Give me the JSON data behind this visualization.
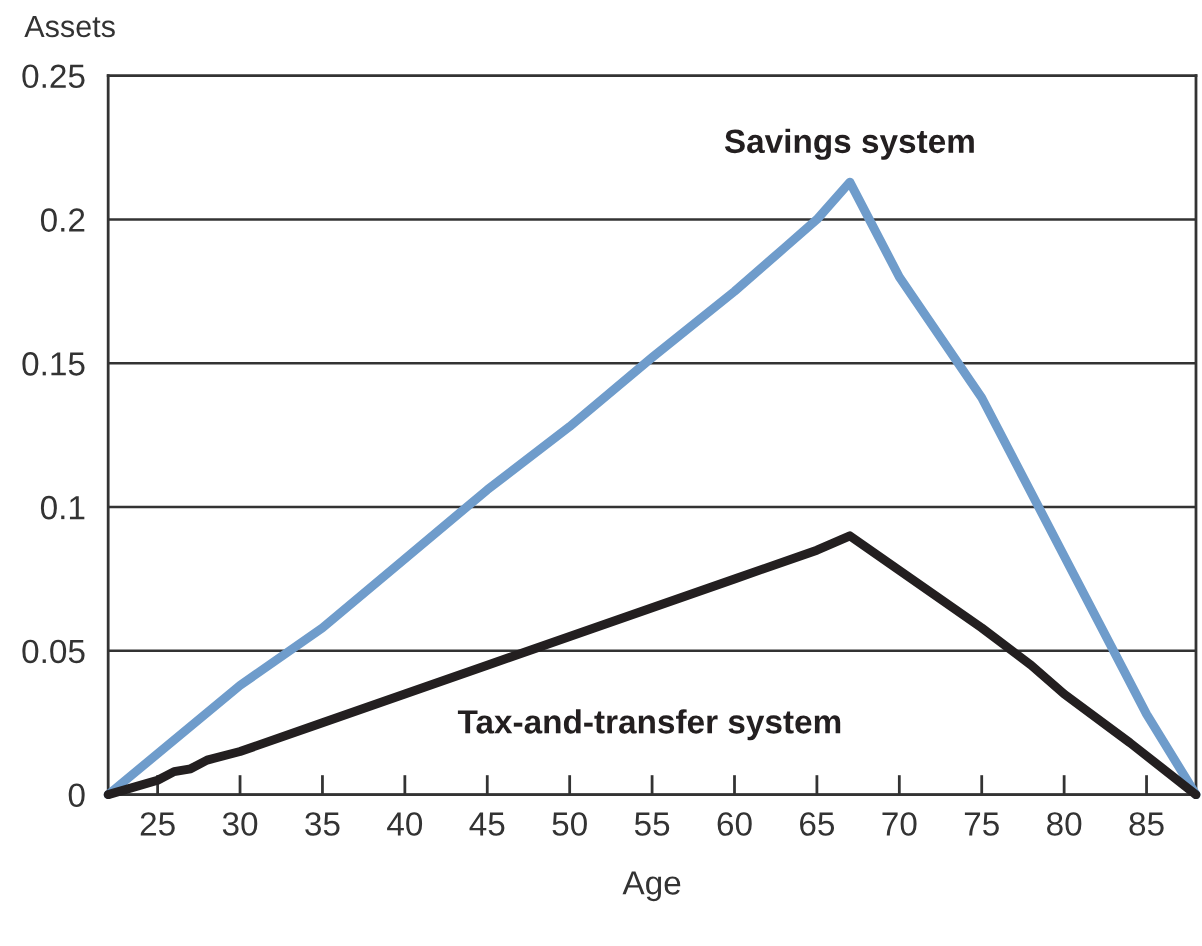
{
  "chart_data": {
    "type": "line",
    "xlabel": "Age",
    "ylabel": "Assets",
    "xlim": [
      22,
      88
    ],
    "xticks": [
      25,
      30,
      35,
      40,
      45,
      50,
      55,
      60,
      65,
      70,
      75,
      80,
      85
    ],
    "ylim": [
      0,
      0.25
    ],
    "yticks": [
      0,
      0.05,
      0.1,
      0.15,
      0.2,
      0.25
    ],
    "grid": "y",
    "legend": false,
    "series": [
      {
        "name": "Savings system",
        "color": "#6f9ccb",
        "x": [
          22,
          30,
          35,
          40,
          45,
          50,
          55,
          60,
          63,
          65,
          67,
          70,
          75,
          80,
          85,
          88
        ],
        "values": [
          0,
          0.038,
          0.058,
          0.082,
          0.106,
          0.128,
          0.152,
          0.175,
          0.19,
          0.2,
          0.213,
          0.18,
          0.138,
          0.083,
          0.028,
          0
        ]
      },
      {
        "name": "Tax-and-transfer system",
        "color": "#231f20",
        "x": [
          22,
          25,
          26,
          27,
          28,
          30,
          35,
          40,
          45,
          50,
          55,
          60,
          65,
          67,
          70,
          75,
          78,
          80,
          84,
          88
        ],
        "values": [
          0,
          0.005,
          0.008,
          0.009,
          0.012,
          0.015,
          0.025,
          0.035,
          0.045,
          0.055,
          0.065,
          0.075,
          0.085,
          0.09,
          0.078,
          0.058,
          0.045,
          0.035,
          0.018,
          0
        ]
      }
    ]
  }
}
